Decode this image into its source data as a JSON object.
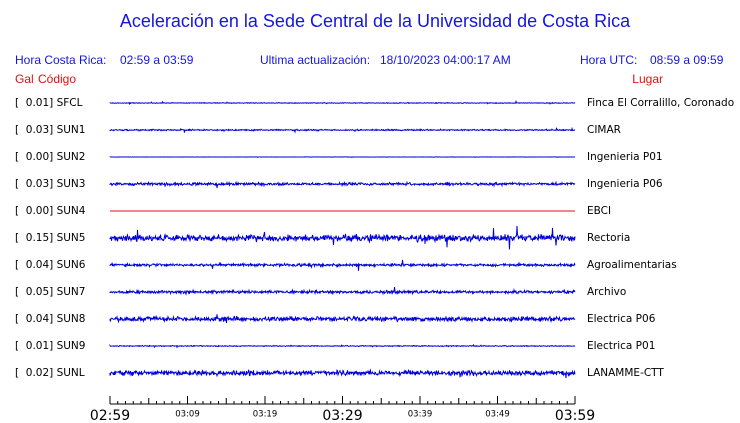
{
  "header": {
    "title": "Aceleración en la Sede Central de la Universidad de Costa Rica",
    "local_label": "Hora Costa Rica:",
    "local_range": "02:59 a 03:59",
    "update_label": "Ultima actualización:",
    "update_time": "18/10/2023 04:00:17 AM",
    "utc_label": "Hora UTC:",
    "utc_range": "08:59 a 09:59"
  },
  "columns": {
    "gal": "Gal",
    "code": "Código",
    "place": "Lugar"
  },
  "rows": [
    {
      "label": "[  0.01] SFCL",
      "place": "Finca El Corralillo, Coronado"
    },
    {
      "label": "[  0.03] SUN1",
      "place": "CIMAR"
    },
    {
      "label": "[  0.00] SUN2",
      "place": "Ingenieria P01"
    },
    {
      "label": "[  0.03] SUN3",
      "place": "Ingenieria P06"
    },
    {
      "label": "[  0.00] SUN4",
      "place": "EBCI"
    },
    {
      "label": "[  0.15] SUN5",
      "place": "Rectoria"
    },
    {
      "label": "[  0.04] SUN6",
      "place": "Agroalimentarias"
    },
    {
      "label": "[  0.05] SUN7",
      "place": "Archivo"
    },
    {
      "label": "[  0.04] SUN8",
      "place": "Electrica P06"
    },
    {
      "label": "[  0.01] SUN9",
      "place": "Electrica P01"
    },
    {
      "label": "[  0.02] SUNL",
      "place": "LANAMME-CTT"
    }
  ],
  "time_axis": [
    "02:59",
    "03:09",
    "03:19",
    "03:29",
    "03:39",
    "03:49",
    "03:59"
  ]
}
